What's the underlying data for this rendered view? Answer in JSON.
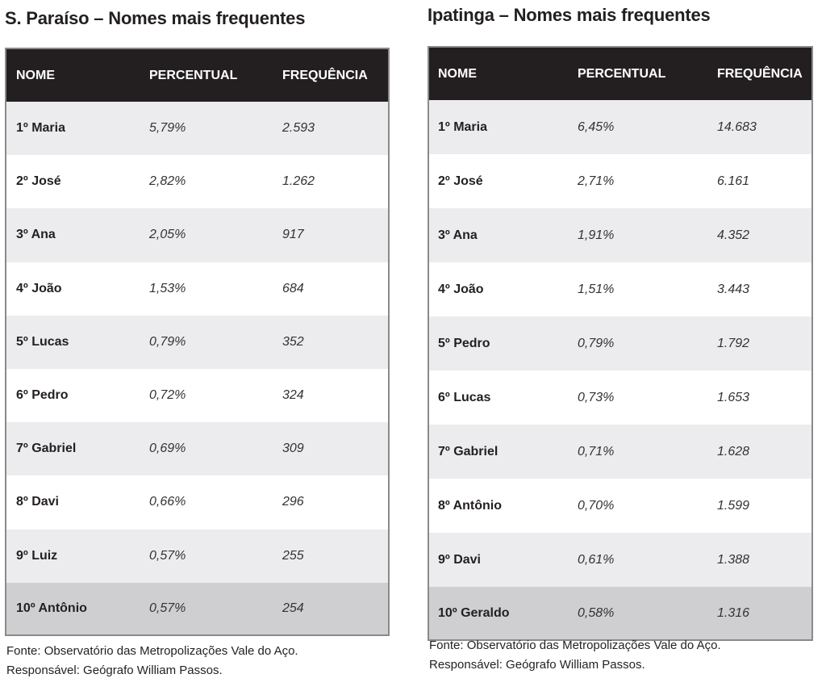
{
  "tables": [
    {
      "title": "S. Paraíso – Nomes mais frequentes",
      "headers": [
        "NOME",
        "PERCENTUAL",
        "FREQUÊNCIA"
      ],
      "rows": [
        [
          "1º Maria",
          "5,79%",
          "2.593"
        ],
        [
          "2º José",
          "2,82%",
          "1.262"
        ],
        [
          "3º Ana",
          "2,05%",
          "917"
        ],
        [
          "4º João",
          "1,53%",
          "684"
        ],
        [
          "5º Lucas",
          "0,79%",
          "352"
        ],
        [
          "6º Pedro",
          "0,72%",
          "324"
        ],
        [
          "7º Gabriel",
          "0,69%",
          "309"
        ],
        [
          "8º Davi",
          "0,66%",
          "296"
        ],
        [
          "9º Luiz",
          "0,57%",
          "255"
        ],
        [
          "10º Antônio",
          "0,57%",
          "254"
        ]
      ],
      "footer": [
        "Fonte: Observatório das Metropolizações Vale do Aço.",
        "Responsável: Geógrafo William Passos."
      ]
    },
    {
      "title": "Ipatinga – Nomes mais frequentes",
      "headers": [
        "NOME",
        "PERCENTUAL",
        "FREQUÊNCIA"
      ],
      "rows": [
        [
          "1º Maria",
          "6,45%",
          "14.683"
        ],
        [
          "2º José",
          "2,71%",
          "6.161"
        ],
        [
          "3º Ana",
          "1,91%",
          "4.352"
        ],
        [
          "4º João",
          "1,51%",
          "3.443"
        ],
        [
          "5º Pedro",
          "0,79%",
          "1.792"
        ],
        [
          "6º Lucas",
          "0,73%",
          "1.653"
        ],
        [
          "7º Gabriel",
          "0,71%",
          "1.628"
        ],
        [
          "8º Antônio",
          "0,70%",
          "1.599"
        ],
        [
          "9º Davi",
          "0,61%",
          "1.388"
        ],
        [
          "10º Geraldo",
          "0,58%",
          "1.316"
        ]
      ],
      "footer": [
        "Fonte: Observatório das Metropolizações Vale do Aço.",
        "Responsável: Geógrafo William Passos."
      ]
    }
  ]
}
